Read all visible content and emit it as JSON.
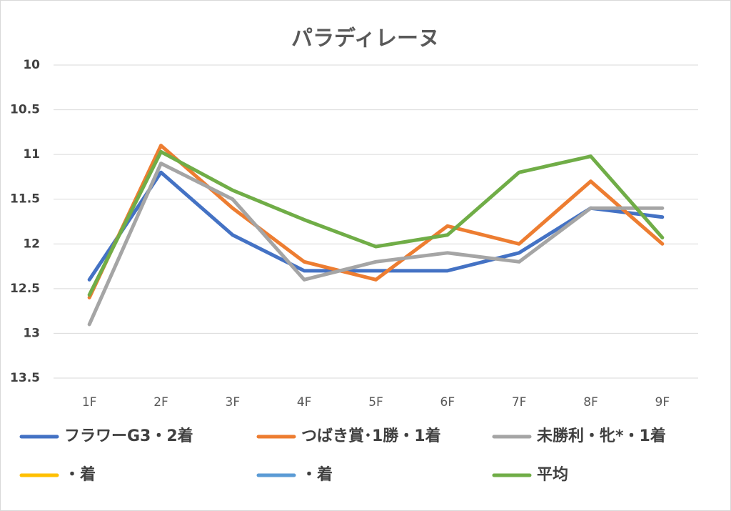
{
  "chart_data": {
    "type": "line",
    "title": "パラディレーヌ",
    "categories": [
      "1F",
      "2F",
      "3F",
      "4F",
      "5F",
      "6F",
      "7F",
      "8F",
      "9F"
    ],
    "series": [
      {
        "name": "フラワーG3・2着",
        "color": "#4472c4",
        "values": [
          12.4,
          11.2,
          11.9,
          12.3,
          12.3,
          12.3,
          12.1,
          11.6,
          11.7
        ]
      },
      {
        "name": "つばき賞･1勝・1着",
        "color": "#ed7d31",
        "values": [
          12.6,
          10.9,
          11.6,
          12.2,
          12.4,
          11.8,
          12.0,
          11.3,
          12.0
        ]
      },
      {
        "name": "未勝利・牝*・1着",
        "color": "#a5a5a5",
        "values": [
          12.9,
          11.1,
          11.5,
          12.4,
          12.2,
          12.1,
          12.2,
          11.6,
          11.6
        ]
      },
      {
        "name": "・着",
        "color": "#ffc000",
        "values": [
          null,
          null,
          null,
          null,
          null,
          null,
          null,
          null,
          null
        ]
      },
      {
        "name": "・着",
        "color": "#5b9bd5",
        "values": [
          null,
          null,
          null,
          null,
          null,
          null,
          null,
          null,
          null
        ]
      },
      {
        "name": "平均",
        "color": "#70ad47",
        "values": [
          12.57,
          10.97,
          11.4,
          11.73,
          12.03,
          11.9,
          11.2,
          11.02,
          11.93
        ]
      }
    ],
    "ylim": [
      13.5,
      10
    ],
    "yticks": [
      10,
      10.5,
      11,
      11.5,
      12,
      12.5,
      13,
      13.5
    ],
    "grid": true
  }
}
